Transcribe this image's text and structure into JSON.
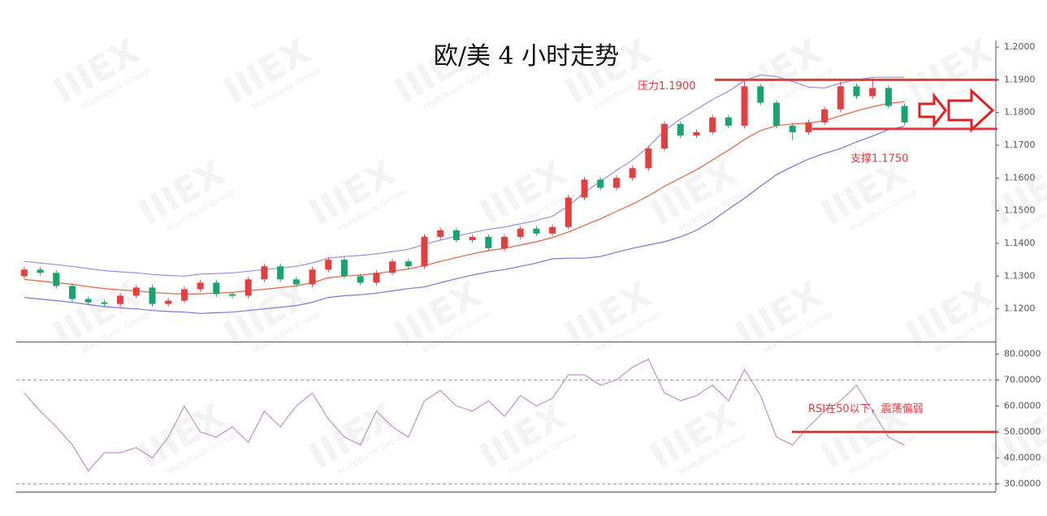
{
  "chart_data": [
    {
      "type": "candlestick",
      "title": "欧/美 4 小时走势",
      "watermark": "IIIEX",
      "watermark_sub": "MultiBank Group",
      "up_color": "#e04040",
      "down_color": "#1aa36f",
      "open": [
        1.13,
        1.132,
        1.131,
        1.127,
        1.123,
        1.122,
        1.1215,
        1.124,
        1.1265,
        1.1215,
        1.1225,
        1.126,
        1.128,
        1.1245,
        1.124,
        1.129,
        1.133,
        1.129,
        1.1275,
        1.132,
        1.135,
        1.13,
        1.128,
        1.131,
        1.1345,
        1.133,
        1.142,
        1.144,
        1.141,
        1.142,
        1.1385,
        1.142,
        1.1445,
        1.143,
        1.145,
        1.154,
        1.1595,
        1.157,
        1.16,
        1.163,
        1.169,
        1.1765,
        1.173,
        1.174,
        1.1785,
        1.176,
        1.188,
        1.183,
        1.176,
        1.174,
        1.177,
        1.181,
        1.188,
        1.185,
        1.1875,
        1.182
      ],
      "high": [
        1.1328,
        1.1328,
        1.1318,
        1.1278,
        1.1238,
        1.1228,
        1.1248,
        1.1273,
        1.1273,
        1.1233,
        1.1268,
        1.1288,
        1.1288,
        1.1253,
        1.1298,
        1.1338,
        1.1338,
        1.1298,
        1.1328,
        1.1358,
        1.1358,
        1.1308,
        1.1318,
        1.1353,
        1.1353,
        1.1428,
        1.1448,
        1.1448,
        1.1428,
        1.1428,
        1.1428,
        1.1453,
        1.1453,
        1.1458,
        1.1548,
        1.1603,
        1.1603,
        1.1608,
        1.1638,
        1.1698,
        1.1773,
        1.1773,
        1.1748,
        1.1793,
        1.1793,
        1.1898,
        1.1888,
        1.1838,
        1.1768,
        1.1778,
        1.1818,
        1.1895,
        1.1888,
        1.1905,
        1.1883,
        1.1828
      ],
      "low": [
        1.1292,
        1.1302,
        1.1262,
        1.1222,
        1.1212,
        1.1207,
        1.1207,
        1.1232,
        1.1207,
        1.1207,
        1.1217,
        1.1252,
        1.1237,
        1.1232,
        1.1232,
        1.1282,
        1.1282,
        1.1267,
        1.1267,
        1.1312,
        1.1292,
        1.1272,
        1.1272,
        1.1302,
        1.1322,
        1.1322,
        1.1412,
        1.1402,
        1.1402,
        1.1377,
        1.1377,
        1.1412,
        1.1422,
        1.1422,
        1.1442,
        1.1532,
        1.1562,
        1.1562,
        1.1592,
        1.1622,
        1.1682,
        1.1722,
        1.1722,
        1.1732,
        1.1752,
        1.1752,
        1.1822,
        1.1752,
        1.1715,
        1.1732,
        1.1762,
        1.1802,
        1.1842,
        1.1842,
        1.1812,
        1.1762
      ],
      "close": [
        1.132,
        1.131,
        1.127,
        1.123,
        1.122,
        1.1215,
        1.124,
        1.1265,
        1.1215,
        1.1225,
        1.126,
        1.128,
        1.1245,
        1.124,
        1.129,
        1.133,
        1.129,
        1.1275,
        1.132,
        1.135,
        1.13,
        1.128,
        1.131,
        1.1345,
        1.133,
        1.142,
        1.144,
        1.141,
        1.142,
        1.1385,
        1.142,
        1.1445,
        1.143,
        1.145,
        1.154,
        1.1595,
        1.157,
        1.16,
        1.163,
        1.169,
        1.1765,
        1.173,
        1.174,
        1.1785,
        1.176,
        1.188,
        1.183,
        1.176,
        1.174,
        1.177,
        1.181,
        1.188,
        1.185,
        1.1875,
        1.182,
        1.177
      ],
      "series": [
        {
          "color": "#9a8ae6",
          "values": [
            1.1345,
            1.134,
            1.1335,
            1.133,
            1.1323,
            1.1317,
            1.1313,
            1.131,
            1.1305,
            1.1302,
            1.13,
            1.1306,
            1.1308,
            1.131,
            1.1315,
            1.132,
            1.1325,
            1.133,
            1.134,
            1.1355,
            1.136,
            1.1363,
            1.1368,
            1.1375,
            1.1382,
            1.1397,
            1.141,
            1.1422,
            1.1433,
            1.1443,
            1.145,
            1.146,
            1.147,
            1.1483,
            1.1515,
            1.1555,
            1.159,
            1.1623,
            1.1655,
            1.1695,
            1.1745,
            1.178,
            1.181,
            1.184,
            1.1865,
            1.1898,
            1.1915,
            1.191,
            1.1895,
            1.1878,
            1.1875,
            1.189,
            1.19,
            1.1908,
            1.1908,
            1.1908
          ]
        },
        {
          "color": "#e8603c",
          "values": [
            1.129,
            1.1285,
            1.128,
            1.1275,
            1.1268,
            1.1262,
            1.1258,
            1.1255,
            1.125,
            1.1247,
            1.1245,
            1.1246,
            1.1248,
            1.125,
            1.1255,
            1.126,
            1.1265,
            1.127,
            1.128,
            1.1295,
            1.13,
            1.1303,
            1.1308,
            1.1315,
            1.1322,
            1.1332,
            1.1345,
            1.1357,
            1.1368,
            1.1378,
            1.1385,
            1.1395,
            1.1405,
            1.1418,
            1.1435,
            1.1455,
            1.1475,
            1.1498,
            1.152,
            1.1545,
            1.1575,
            1.16,
            1.1625,
            1.1655,
            1.1685,
            1.1718,
            1.1745,
            1.176,
            1.1765,
            1.1768,
            1.1775,
            1.179,
            1.1805,
            1.1818,
            1.1828,
            1.1833
          ]
        },
        {
          "color": "#7d72dc",
          "values": [
            1.1235,
            1.123,
            1.1225,
            1.122,
            1.1213,
            1.1207,
            1.1203,
            1.12,
            1.1195,
            1.1192,
            1.119,
            1.1186,
            1.1188,
            1.119,
            1.1195,
            1.12,
            1.1205,
            1.121,
            1.122,
            1.1235,
            1.124,
            1.1243,
            1.1248,
            1.1255,
            1.1262,
            1.1267,
            1.128,
            1.1292,
            1.1303,
            1.1313,
            1.132,
            1.133,
            1.134,
            1.1353,
            1.1355,
            1.1355,
            1.136,
            1.1373,
            1.1385,
            1.1395,
            1.1405,
            1.142,
            1.144,
            1.147,
            1.1505,
            1.1538,
            1.1575,
            1.161,
            1.1635,
            1.1658,
            1.1675,
            1.169,
            1.171,
            1.1728,
            1.1748,
            1.1758
          ]
        }
      ],
      "ylim": [
        1.11,
        1.202
      ],
      "yticks": [
        {
          "value": 1.12,
          "label": "1.1200"
        },
        {
          "value": 1.13,
          "label": "1.1300"
        },
        {
          "value": 1.14,
          "label": "1.1400"
        },
        {
          "value": 1.15,
          "label": "1.1500"
        },
        {
          "value": 1.16,
          "label": "1.1600"
        },
        {
          "value": 1.17,
          "label": "1.1700"
        },
        {
          "value": 1.18,
          "label": "1.1800"
        },
        {
          "value": 1.19,
          "label": "1.1900"
        },
        {
          "value": 1.2,
          "label": "1.2000"
        }
      ],
      "hlines": [
        {
          "value": 1.19,
          "label": "压力1.1900",
          "color": "#e8383d"
        },
        {
          "value": 1.175,
          "label": "支撑1.1750",
          "color": "#e8383d"
        }
      ]
    },
    {
      "type": "line",
      "series": [
        {
          "color": "#c38fd0",
          "values": [
            65,
            58,
            52,
            45,
            35,
            42,
            42,
            44,
            40,
            48,
            60,
            50,
            48,
            52,
            46,
            58,
            52,
            60,
            65,
            55,
            48,
            45,
            58,
            52,
            48,
            62,
            66,
            60,
            58,
            62,
            56,
            64,
            60,
            63,
            72,
            72,
            68,
            70,
            75,
            78,
            65,
            62,
            64,
            68,
            62,
            74,
            64,
            48,
            45,
            52,
            58,
            62,
            68,
            58,
            48,
            45
          ]
        }
      ],
      "ylim": [
        27,
        84.5
      ],
      "yticks": [
        {
          "value": 30,
          "label": "30.0000"
        },
        {
          "value": 40,
          "label": "40.0000"
        },
        {
          "value": 50,
          "label": "50.0000"
        },
        {
          "value": 60,
          "label": "60.0000"
        },
        {
          "value": 70,
          "label": "70.0000"
        },
        {
          "value": 80,
          "label": "80.0000"
        }
      ],
      "dashed_levels": [
        70,
        30
      ],
      "hlines": [
        {
          "value": 50,
          "label": "RSI在50以下，震荡偏弱",
          "color": "#e8383d"
        }
      ]
    }
  ]
}
